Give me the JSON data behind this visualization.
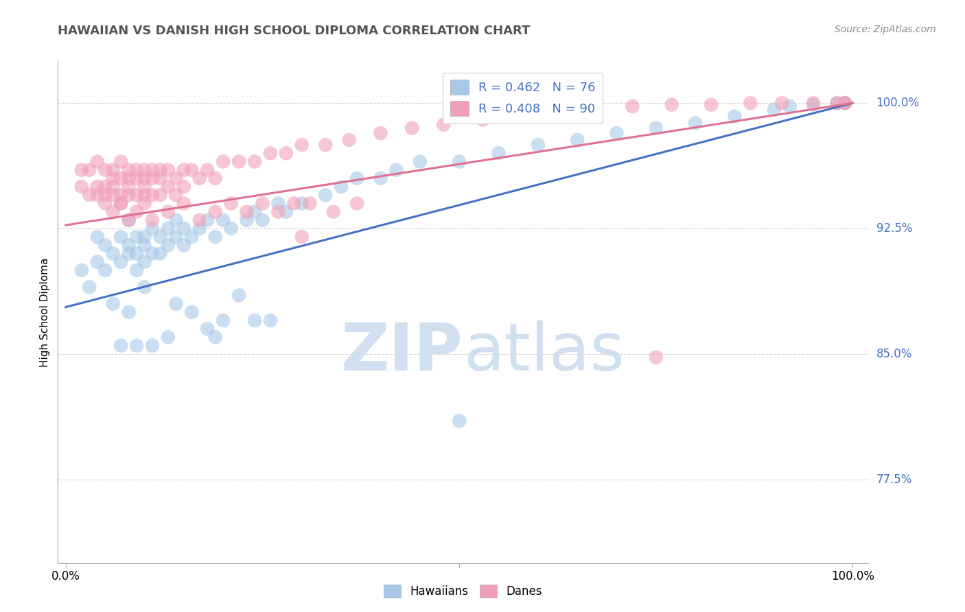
{
  "title": "HAWAIIAN VS DANISH HIGH SCHOOL DIPLOMA CORRELATION CHART",
  "source": "Source: ZipAtlas.com",
  "ylabel": "High School Diploma",
  "ytick_labels": [
    "77.5%",
    "85.0%",
    "92.5%",
    "100.0%"
  ],
  "ytick_values": [
    0.775,
    0.85,
    0.925,
    1.0
  ],
  "xlim": [
    0.0,
    1.0
  ],
  "ylim": [
    0.725,
    1.025
  ],
  "legend_label_h": "R = 0.462   N = 76",
  "legend_label_d": "R = 0.408   N = 90",
  "hawaiian_color": "#a8c8e8",
  "danish_color": "#f0a0b8",
  "watermark_color": "#d0e0f0",
  "background_color": "#ffffff",
  "trend_hawaiian_color": "#4472c4",
  "trend_danish_color": "#e07090",
  "tick_label_color": "#4472c4",
  "grid_color": "#cccccc",
  "title_color": "#555555",
  "source_color": "#888888",
  "trend_h_x0": 0.0,
  "trend_h_y0": 0.878,
  "trend_h_x1": 1.0,
  "trend_h_y1": 1.0,
  "trend_d_x0": 0.0,
  "trend_d_y0": 0.927,
  "trend_d_x1": 1.0,
  "trend_d_y1": 1.0,
  "hawaiian_x": [
    0.02,
    0.03,
    0.04,
    0.04,
    0.05,
    0.05,
    0.06,
    0.07,
    0.07,
    0.08,
    0.08,
    0.08,
    0.09,
    0.09,
    0.09,
    0.1,
    0.1,
    0.1,
    0.11,
    0.11,
    0.12,
    0.12,
    0.13,
    0.13,
    0.14,
    0.14,
    0.15,
    0.15,
    0.16,
    0.17,
    0.18,
    0.19,
    0.2,
    0.21,
    0.23,
    0.24,
    0.25,
    0.27,
    0.28,
    0.3,
    0.33,
    0.35,
    0.37,
    0.4,
    0.42,
    0.45,
    0.5,
    0.55,
    0.6,
    0.65,
    0.7,
    0.75,
    0.8,
    0.85,
    0.9,
    0.92,
    0.95,
    0.98,
    0.99,
    0.99,
    0.14,
    0.16,
    0.2,
    0.24,
    0.26,
    0.22,
    0.18,
    0.1,
    0.08,
    0.06,
    0.07,
    0.09,
    0.11,
    0.13,
    0.19,
    0.5
  ],
  "hawaiian_y": [
    0.9,
    0.89,
    0.92,
    0.905,
    0.915,
    0.9,
    0.91,
    0.92,
    0.905,
    0.915,
    0.93,
    0.91,
    0.92,
    0.91,
    0.9,
    0.915,
    0.905,
    0.92,
    0.91,
    0.925,
    0.92,
    0.91,
    0.915,
    0.925,
    0.92,
    0.93,
    0.915,
    0.925,
    0.92,
    0.925,
    0.93,
    0.92,
    0.93,
    0.925,
    0.93,
    0.935,
    0.93,
    0.94,
    0.935,
    0.94,
    0.945,
    0.95,
    0.955,
    0.955,
    0.96,
    0.965,
    0.965,
    0.97,
    0.975,
    0.978,
    0.982,
    0.985,
    0.988,
    0.992,
    0.996,
    0.998,
    0.999,
    1.0,
    1.0,
    1.0,
    0.88,
    0.875,
    0.87,
    0.87,
    0.87,
    0.885,
    0.865,
    0.89,
    0.875,
    0.88,
    0.855,
    0.855,
    0.855,
    0.86,
    0.86,
    0.81
  ],
  "danish_x": [
    0.02,
    0.02,
    0.03,
    0.03,
    0.04,
    0.04,
    0.05,
    0.05,
    0.05,
    0.06,
    0.06,
    0.06,
    0.06,
    0.07,
    0.07,
    0.07,
    0.07,
    0.08,
    0.08,
    0.08,
    0.08,
    0.09,
    0.09,
    0.09,
    0.1,
    0.1,
    0.1,
    0.1,
    0.11,
    0.11,
    0.11,
    0.12,
    0.12,
    0.12,
    0.13,
    0.13,
    0.14,
    0.14,
    0.15,
    0.15,
    0.16,
    0.17,
    0.18,
    0.19,
    0.2,
    0.22,
    0.24,
    0.26,
    0.28,
    0.3,
    0.33,
    0.36,
    0.4,
    0.44,
    0.48,
    0.53,
    0.57,
    0.62,
    0.67,
    0.72,
    0.77,
    0.82,
    0.87,
    0.91,
    0.95,
    0.98,
    0.99,
    0.99,
    0.13,
    0.15,
    0.17,
    0.19,
    0.21,
    0.23,
    0.25,
    0.27,
    0.29,
    0.31,
    0.34,
    0.37,
    0.06,
    0.07,
    0.08,
    0.09,
    0.1,
    0.11,
    0.04,
    0.05,
    0.75,
    0.3
  ],
  "danish_y": [
    0.95,
    0.96,
    0.945,
    0.96,
    0.95,
    0.965,
    0.95,
    0.945,
    0.96,
    0.955,
    0.945,
    0.96,
    0.95,
    0.955,
    0.945,
    0.965,
    0.94,
    0.955,
    0.945,
    0.96,
    0.95,
    0.955,
    0.945,
    0.96,
    0.955,
    0.945,
    0.96,
    0.95,
    0.955,
    0.945,
    0.96,
    0.955,
    0.945,
    0.96,
    0.95,
    0.96,
    0.955,
    0.945,
    0.96,
    0.95,
    0.96,
    0.955,
    0.96,
    0.955,
    0.965,
    0.965,
    0.965,
    0.97,
    0.97,
    0.975,
    0.975,
    0.978,
    0.982,
    0.985,
    0.987,
    0.99,
    0.993,
    0.995,
    0.997,
    0.998,
    0.999,
    0.999,
    1.0,
    1.0,
    1.0,
    1.0,
    1.0,
    1.0,
    0.935,
    0.94,
    0.93,
    0.935,
    0.94,
    0.935,
    0.94,
    0.935,
    0.94,
    0.94,
    0.935,
    0.94,
    0.935,
    0.94,
    0.93,
    0.935,
    0.94,
    0.93,
    0.945,
    0.94,
    0.848,
    0.92
  ]
}
